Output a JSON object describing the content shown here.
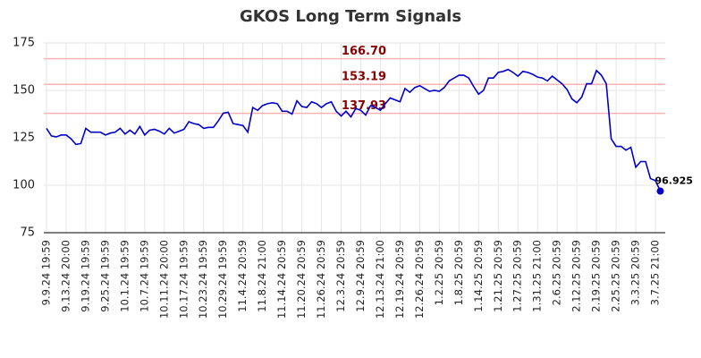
{
  "chart_data": {
    "type": "line",
    "title": "GKOS Long Term Signals",
    "categories": [
      "9.9.24 19:59",
      null,
      null,
      null,
      "9.13.24 20:00",
      null,
      null,
      null,
      "9.19.24 19:59",
      null,
      null,
      null,
      "9.25.24 19:59",
      null,
      null,
      null,
      "10.1.24 19:59",
      null,
      null,
      null,
      "10.7.24 19:59",
      null,
      null,
      null,
      "10.11.24 20:00",
      null,
      null,
      null,
      "10.17.24 19:59",
      null,
      null,
      null,
      "10.23.24 19:59",
      null,
      null,
      null,
      "10.29.24 19:59",
      null,
      null,
      null,
      "11.4.24 20:59",
      null,
      null,
      null,
      "11.8.24 21:00",
      null,
      null,
      null,
      "11.14.24 20:59",
      null,
      null,
      null,
      "11.20.24 20:59",
      null,
      null,
      null,
      "11.26.24 20:59",
      null,
      null,
      null,
      "12.3.24 20:59",
      null,
      null,
      null,
      "12.9.24 20:59",
      null,
      null,
      null,
      "12.13.24 21:00",
      null,
      null,
      null,
      "12.19.24 20:59",
      null,
      null,
      null,
      "12.26.24 20:59",
      null,
      null,
      null,
      "1.2.25 20:59",
      null,
      null,
      null,
      "1.8.25 20:59",
      null,
      null,
      null,
      "1.14.25 20:59",
      null,
      null,
      null,
      "1.21.25 20:59",
      null,
      null,
      null,
      "1.27.25 20:59",
      null,
      null,
      null,
      "1.31.25 21:00",
      null,
      null,
      null,
      "2.6.25 20:59",
      null,
      null,
      null,
      "2.12.25 20:59",
      null,
      null,
      null,
      "2.19.25 20:59",
      null,
      null,
      null,
      "2.25.25 20:59",
      null,
      null,
      null,
      "3.3.25 20:59",
      null,
      null,
      null,
      "3.7.25 21:00",
      null
    ],
    "values": [
      130,
      126,
      125.5,
      126.5,
      126.5,
      124.5,
      121.5,
      122,
      130,
      128,
      128,
      128,
      126.5,
      127.5,
      128,
      130,
      127,
      129,
      127,
      131,
      126.5,
      129,
      129.5,
      128.5,
      127,
      130,
      127.5,
      128.5,
      129.5,
      133.5,
      132.5,
      132,
      130,
      130.5,
      130.5,
      134,
      138,
      138.5,
      132.5,
      132,
      131.5,
      128,
      141,
      139.5,
      142,
      143,
      143.5,
      143,
      139,
      139,
      137.5,
      144.5,
      141.5,
      141,
      144,
      143,
      141,
      143,
      144,
      139,
      136.5,
      139,
      136,
      140.5,
      139.5,
      137,
      142,
      141,
      139.5,
      143,
      146,
      145,
      144,
      151,
      149,
      151.5,
      152.5,
      151,
      149.5,
      150,
      149.5,
      151.5,
      155,
      156.5,
      158,
      158,
      156.5,
      152,
      148,
      150,
      156.5,
      156.5,
      159.5,
      160,
      161,
      159.5,
      157.5,
      160,
      159.5,
      158.5,
      157,
      156.5,
      155,
      157.5,
      155.5,
      153.5,
      150.5,
      145.5,
      143.5,
      146.5,
      153.5,
      153.5,
      160.5,
      158,
      153.5,
      124.5,
      120.5,
      120.5,
      118.5,
      120,
      109.5,
      112.5,
      112.5,
      103.5,
      102.5,
      96.925
    ],
    "color": "#0000cc",
    "ylim": [
      75,
      175
    ],
    "yticks": [
      75,
      100,
      125,
      150,
      175
    ],
    "grid": true,
    "signals": [
      {
        "value": 166.7,
        "label": "166.70"
      },
      {
        "value": 153.19,
        "label": "153.19"
      },
      {
        "value": 137.93,
        "label": "137.93"
      }
    ],
    "signal_color": "#ffb3b3",
    "signal_label_color": "#8b0000"
  }
}
